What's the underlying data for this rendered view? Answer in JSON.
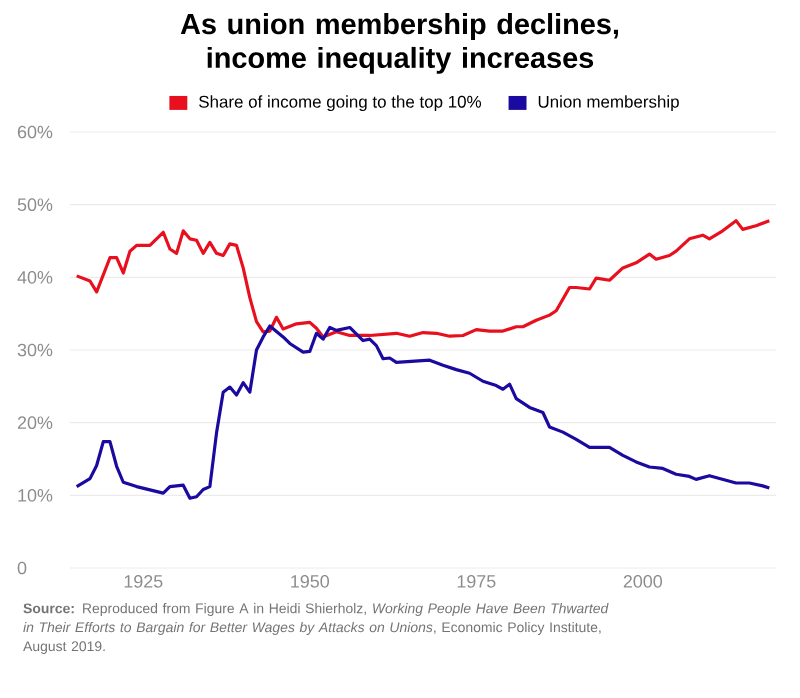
{
  "chart_data": {
    "type": "line",
    "title": "As union membership declines, income inequality increases",
    "annotations": [
      "**Source:** Reproduced from Figure A in Heidi Shierholz, *Working People Have Been Thwarted in Their Efforts to Bargain for Better Wages by Attacks on Unions*, Economic Policy Institute, August 2019."
    ],
    "series": [
      {
        "name": "Share of income going to the top 10%",
        "color": "#e8101e",
        "x": [
          1915,
          1917,
          1918,
          1920,
          1921,
          1922,
          1923,
          1924,
          1926,
          1927,
          1928,
          1929,
          1930,
          1931,
          1932,
          1933,
          1934,
          1935,
          1936,
          1937,
          1938,
          1939,
          1940,
          1941,
          1942,
          1943,
          1944,
          1945,
          1946,
          1948,
          1950,
          1951,
          1952,
          1954,
          1956,
          1959,
          1963,
          1965,
          1967,
          1969,
          1971,
          1973,
          1975,
          1977,
          1979,
          1981,
          1982,
          1984,
          1986,
          1987,
          1989,
          1990,
          1992,
          1993,
          1995,
          1997,
          1999,
          2001,
          2002,
          2004,
          2005,
          2007,
          2009,
          2010,
          2012,
          2014,
          2015,
          2017,
          2019
        ],
        "values": [
          40.2,
          39.5,
          38.0,
          42.7,
          42.7,
          40.6,
          43.6,
          44.4,
          44.4,
          45.3,
          46.2,
          43.9,
          43.3,
          46.4,
          45.3,
          45.1,
          43.3,
          44.8,
          43.3,
          43.0,
          44.6,
          44.4,
          41.3,
          37.2,
          33.9,
          32.5,
          32.6,
          34.5,
          32.9,
          33.6,
          33.8,
          33.0,
          31.8,
          32.5,
          32.0,
          32.0,
          32.3,
          31.9,
          32.4,
          32.3,
          31.9,
          32.0,
          32.8,
          32.6,
          32.6,
          33.2,
          33.2,
          34.1,
          34.8,
          35.4,
          38.6,
          38.6,
          38.4,
          39.9,
          39.6,
          41.3,
          42.0,
          43.2,
          42.5,
          43.0,
          43.6,
          45.3,
          45.8,
          45.3,
          46.4,
          47.8,
          46.6,
          47.1,
          47.8
        ]
      },
      {
        "name": "Union membership",
        "color": "#1a0aa0",
        "x": [
          1915,
          1917,
          1918,
          1919,
          1920,
          1921,
          1922,
          1924,
          1928,
          1929,
          1931,
          1932,
          1933,
          1934,
          1935,
          1936,
          1937,
          1938,
          1939,
          1940,
          1941,
          1942,
          1943,
          1944,
          1946,
          1947,
          1949,
          1950,
          1951,
          1952,
          1953,
          1954,
          1956,
          1958,
          1959,
          1960,
          1961,
          1962,
          1963,
          1968,
          1970,
          1972,
          1974,
          1976,
          1978,
          1979,
          1980,
          1981,
          1983,
          1985,
          1986,
          1988,
          1990,
          1992,
          1995,
          1997,
          1999,
          2001,
          2003,
          2005,
          2007,
          2008,
          2010,
          2012,
          2014,
          2016,
          2018,
          2019
        ],
        "values": [
          11.2,
          12.3,
          14.1,
          17.4,
          17.4,
          14.0,
          11.8,
          11.2,
          10.3,
          11.2,
          11.4,
          9.6,
          9.8,
          10.8,
          11.2,
          18.6,
          24.2,
          24.9,
          23.8,
          25.5,
          24.2,
          30.0,
          31.8,
          33.3,
          31.8,
          30.9,
          29.7,
          29.8,
          32.3,
          31.5,
          33.1,
          32.7,
          33.1,
          31.3,
          31.5,
          30.6,
          28.8,
          28.9,
          28.3,
          28.6,
          27.9,
          27.3,
          26.8,
          25.7,
          25.1,
          24.6,
          25.3,
          23.3,
          22.1,
          21.4,
          19.4,
          18.7,
          17.7,
          16.6,
          16.6,
          15.5,
          14.6,
          13.9,
          13.7,
          12.9,
          12.6,
          12.2,
          12.7,
          12.2,
          11.7,
          11.7,
          11.3,
          11.0
        ]
      }
    ],
    "xlim": [
      1914,
      2020
    ],
    "xticks": [
      1925,
      1950,
      1975,
      2000
    ],
    "ylim": [
      0,
      60
    ],
    "yticks": [
      {
        "value": 0,
        "label": "0"
      },
      {
        "value": 10,
        "label": "10%"
      },
      {
        "value": 20,
        "label": "20%"
      },
      {
        "value": 30,
        "label": "30%"
      },
      {
        "value": 40,
        "label": "40%"
      },
      {
        "value": 50,
        "label": "50%"
      },
      {
        "value": 60,
        "label": "60%"
      }
    ],
    "grid": "y",
    "legend": "top",
    "line_style": "solid"
  }
}
